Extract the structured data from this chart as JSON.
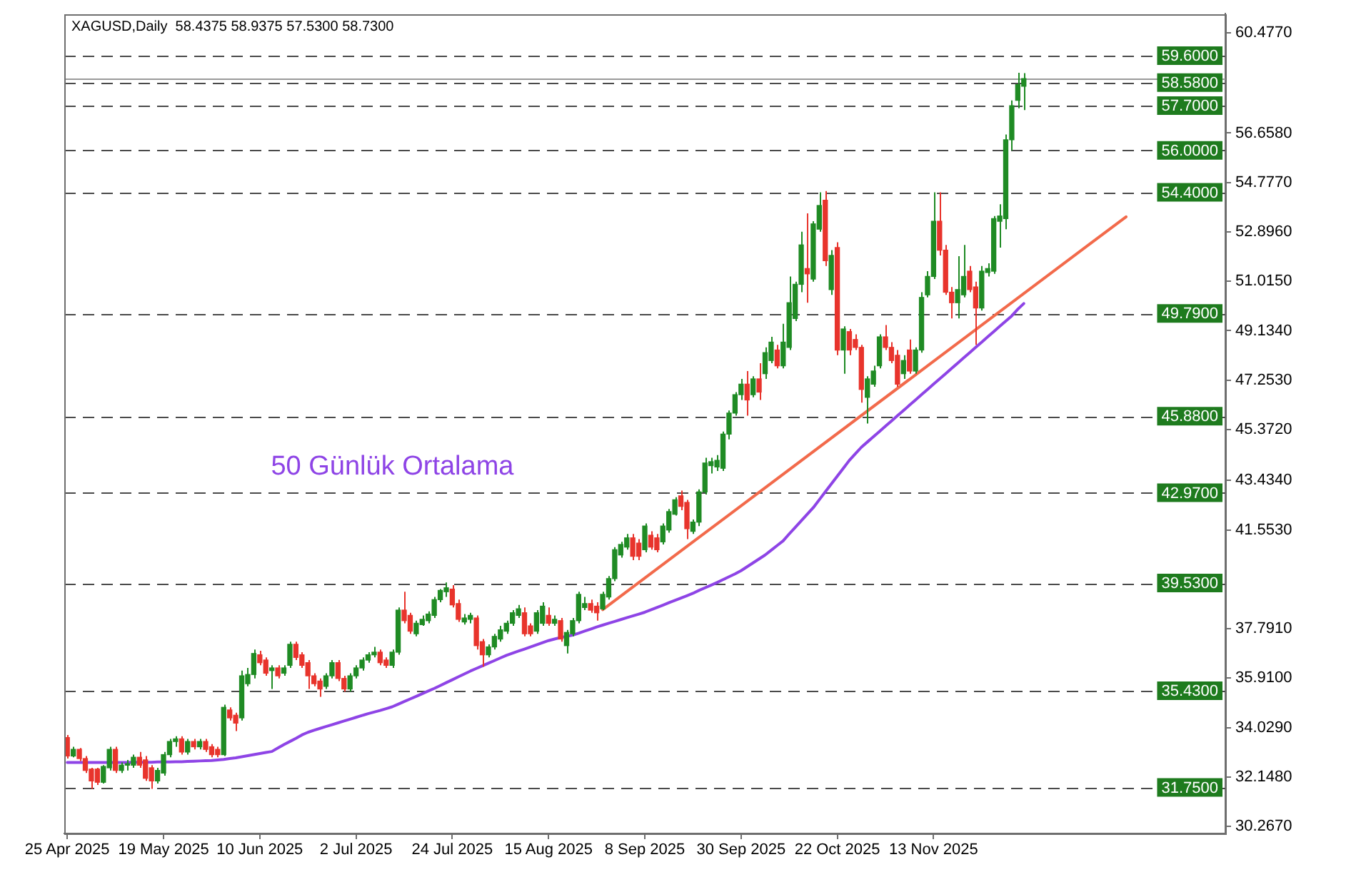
{
  "chart_data": {
    "type": "candlestick",
    "title": "XAGUSD,Daily  58.4375 58.9375 57.5300 58.7300",
    "categories": [
      "25 Apr 2025",
      null,
      null,
      null,
      null,
      null,
      null,
      null,
      null,
      null,
      null,
      null,
      null,
      null,
      null,
      null,
      "19 May 2025",
      null,
      null,
      null,
      null,
      null,
      null,
      null,
      null,
      null,
      null,
      null,
      null,
      null,
      null,
      null,
      "10 Jun 2025",
      null,
      null,
      null,
      null,
      null,
      null,
      null,
      null,
      null,
      null,
      null,
      null,
      null,
      null,
      null,
      "2 Jul 2025",
      null,
      null,
      null,
      null,
      null,
      null,
      null,
      null,
      null,
      null,
      null,
      null,
      null,
      null,
      null,
      "24 Jul 2025",
      null,
      null,
      null,
      null,
      null,
      null,
      null,
      null,
      null,
      null,
      null,
      null,
      null,
      null,
      null,
      "15 Aug 2025",
      null,
      null,
      null,
      null,
      null,
      null,
      null,
      null,
      null,
      null,
      null,
      null,
      null,
      null,
      null,
      "8 Sep 2025",
      null,
      null,
      null,
      null,
      null,
      null,
      null,
      null,
      null,
      null,
      null,
      null,
      null,
      null,
      null,
      "30 Sep 2025",
      null,
      null,
      null,
      null,
      null,
      null,
      null,
      null,
      null,
      null,
      null,
      null,
      null,
      null,
      null,
      "22 Oct 2025",
      null,
      null,
      null,
      null,
      null,
      null,
      null,
      null,
      null,
      null,
      null,
      null,
      null,
      null,
      null,
      "13 Nov 2025",
      null,
      null,
      null,
      null,
      null,
      null,
      null,
      null,
      null,
      null,
      null,
      null,
      null,
      null,
      null,
      null,
      null,
      null,
      null,
      null,
      null,
      null,
      null,
      null,
      null,
      null,
      null,
      null,
      null,
      null,
      null,
      null,
      null,
      null,
      null,
      null,
      null,
      null,
      null,
      null,
      null,
      null,
      null,
      null,
      null,
      null,
      null,
      null
    ],
    "ohlc": [
      [
        33.65,
        33.75,
        32.85,
        32.95
      ],
      [
        32.95,
        33.3,
        32.9,
        33.2
      ],
      [
        33.2,
        33.25,
        32.75,
        32.85
      ],
      [
        32.85,
        32.95,
        32.3,
        32.4
      ],
      [
        32.45,
        32.5,
        31.7,
        32.0
      ],
      [
        32.45,
        32.5,
        31.85,
        31.95
      ],
      [
        31.95,
        32.6,
        31.9,
        32.55
      ],
      [
        32.5,
        33.3,
        32.4,
        33.2
      ],
      [
        33.2,
        33.3,
        32.3,
        32.4
      ],
      [
        32.4,
        32.7,
        32.3,
        32.6
      ],
      [
        32.6,
        32.8,
        32.4,
        32.65
      ],
      [
        32.6,
        33.0,
        32.5,
        32.9
      ],
      [
        32.9,
        33.1,
        32.5,
        32.6
      ],
      [
        32.8,
        32.95,
        32.0,
        32.1
      ],
      [
        32.5,
        32.6,
        31.7,
        32.0
      ],
      [
        32.0,
        32.5,
        31.9,
        32.4
      ],
      [
        32.3,
        33.1,
        32.2,
        33.0
      ],
      [
        33.0,
        33.6,
        32.9,
        33.5
      ],
      [
        33.5,
        33.7,
        33.3,
        33.6
      ],
      [
        33.6,
        33.7,
        33.0,
        33.1
      ],
      [
        33.1,
        33.6,
        33.0,
        33.5
      ],
      [
        33.5,
        33.6,
        33.2,
        33.3
      ],
      [
        33.3,
        33.6,
        33.2,
        33.5
      ],
      [
        33.5,
        33.6,
        33.1,
        33.2
      ],
      [
        33.3,
        33.4,
        32.9,
        33.0
      ],
      [
        33.2,
        33.3,
        32.9,
        33.0
      ],
      [
        33.0,
        34.9,
        32.95,
        34.8
      ],
      [
        34.7,
        34.8,
        34.3,
        34.4
      ],
      [
        34.5,
        34.6,
        33.9,
        34.2
      ],
      [
        34.4,
        36.2,
        34.3,
        36.0
      ],
      [
        35.7,
        36.3,
        35.6,
        36.05
      ],
      [
        36.05,
        37.0,
        35.9,
        36.85
      ],
      [
        36.8,
        36.95,
        36.4,
        36.5
      ],
      [
        36.6,
        36.7,
        36.0,
        36.1
      ],
      [
        36.2,
        36.4,
        35.5,
        36.3
      ],
      [
        36.3,
        36.4,
        35.9,
        36.0
      ],
      [
        36.1,
        36.4,
        36.0,
        36.3
      ],
      [
        36.4,
        37.3,
        36.3,
        37.2
      ],
      [
        37.2,
        37.3,
        36.6,
        36.7
      ],
      [
        36.8,
        36.9,
        36.3,
        36.4
      ],
      [
        36.5,
        36.6,
        35.5,
        36.0
      ],
      [
        36.0,
        36.1,
        35.6,
        35.7
      ],
      [
        35.8,
        35.9,
        35.2,
        35.5
      ],
      [
        35.6,
        36.1,
        35.5,
        36.0
      ],
      [
        36.0,
        36.6,
        35.9,
        36.5
      ],
      [
        36.5,
        36.6,
        35.8,
        35.9
      ],
      [
        35.9,
        36.0,
        35.4,
        35.5
      ],
      [
        35.5,
        36.1,
        35.4,
        36.0
      ],
      [
        36.0,
        36.4,
        35.9,
        36.3
      ],
      [
        36.3,
        36.7,
        36.2,
        36.6
      ],
      [
        36.6,
        36.9,
        36.5,
        36.8
      ],
      [
        36.8,
        37.1,
        36.7,
        36.9
      ],
      [
        36.9,
        37.0,
        36.4,
        36.5
      ],
      [
        36.6,
        36.7,
        36.3,
        36.4
      ],
      [
        36.4,
        37.0,
        36.3,
        36.9
      ],
      [
        36.9,
        38.6,
        36.8,
        38.5
      ],
      [
        38.5,
        39.2,
        38.0,
        38.1
      ],
      [
        38.3,
        38.4,
        37.6,
        37.7
      ],
      [
        37.6,
        38.1,
        37.5,
        38.0
      ],
      [
        37.95,
        38.3,
        37.9,
        38.15
      ],
      [
        38.1,
        38.45,
        38.0,
        38.35
      ],
      [
        38.3,
        39.0,
        38.2,
        38.9
      ],
      [
        38.9,
        39.3,
        38.8,
        39.25
      ],
      [
        39.2,
        39.55,
        39.0,
        39.35
      ],
      [
        39.3,
        39.45,
        38.6,
        38.7
      ],
      [
        38.75,
        38.9,
        38.05,
        38.15
      ],
      [
        38.05,
        38.35,
        37.95,
        38.2
      ],
      [
        38.15,
        38.4,
        38.0,
        38.3
      ],
      [
        38.2,
        38.3,
        37.0,
        37.15
      ],
      [
        37.3,
        37.4,
        36.35,
        36.8
      ],
      [
        36.8,
        37.2,
        36.7,
        37.1
      ],
      [
        37.1,
        37.6,
        37.0,
        37.5
      ],
      [
        37.4,
        37.9,
        37.3,
        37.75
      ],
      [
        37.7,
        38.1,
        37.6,
        38.0
      ],
      [
        38.0,
        38.5,
        37.9,
        38.4
      ],
      [
        38.3,
        38.7,
        38.2,
        38.55
      ],
      [
        38.4,
        38.6,
        37.5,
        37.6
      ],
      [
        37.9,
        38.0,
        37.5,
        37.6
      ],
      [
        37.7,
        38.5,
        37.6,
        38.4
      ],
      [
        38.0,
        38.8,
        37.9,
        38.65
      ],
      [
        38.3,
        38.6,
        37.9,
        38.0
      ],
      [
        38.0,
        38.3,
        37.9,
        38.15
      ],
      [
        38.1,
        38.2,
        37.3,
        37.4
      ],
      [
        37.15,
        37.75,
        36.85,
        37.65
      ],
      [
        37.6,
        38.2,
        37.5,
        38.1
      ],
      [
        38.1,
        39.2,
        38.0,
        39.1
      ],
      [
        38.6,
        39.0,
        38.5,
        38.75
      ],
      [
        38.75,
        38.9,
        38.4,
        38.5
      ],
      [
        38.65,
        38.8,
        38.1,
        38.4
      ],
      [
        38.55,
        39.2,
        38.5,
        39.1
      ],
      [
        39.0,
        39.8,
        38.9,
        39.7
      ],
      [
        39.7,
        40.9,
        39.6,
        40.8
      ],
      [
        40.6,
        41.1,
        40.5,
        41.0
      ],
      [
        40.9,
        41.4,
        40.8,
        41.25
      ],
      [
        41.25,
        41.4,
        40.4,
        40.55
      ],
      [
        41.05,
        41.2,
        40.4,
        40.55
      ],
      [
        40.8,
        41.8,
        40.7,
        41.7
      ],
      [
        41.35,
        41.5,
        40.8,
        40.9
      ],
      [
        41.25,
        41.4,
        40.7,
        40.8
      ],
      [
        41.1,
        41.8,
        41.0,
        41.7
      ],
      [
        41.55,
        42.35,
        41.45,
        42.25
      ],
      [
        42.15,
        42.8,
        42.1,
        42.7
      ],
      [
        42.85,
        43.05,
        42.3,
        42.45
      ],
      [
        42.6,
        42.7,
        41.2,
        41.6
      ],
      [
        41.5,
        41.95,
        41.4,
        41.85
      ],
      [
        41.85,
        43.1,
        41.7,
        43.0
      ],
      [
        43.0,
        44.3,
        42.9,
        44.1
      ],
      [
        44.0,
        44.3,
        43.7,
        44.15
      ],
      [
        43.95,
        44.4,
        43.8,
        44.2
      ],
      [
        43.9,
        45.3,
        43.8,
        45.2
      ],
      [
        45.2,
        46.1,
        45.0,
        46.0
      ],
      [
        46.0,
        46.8,
        45.9,
        46.7
      ],
      [
        46.7,
        47.3,
        46.5,
        47.1
      ],
      [
        47.1,
        47.6,
        45.9,
        46.5
      ],
      [
        46.7,
        47.4,
        46.6,
        47.3
      ],
      [
        47.3,
        47.9,
        46.5,
        46.8
      ],
      [
        47.5,
        48.5,
        47.3,
        48.3
      ],
      [
        48.0,
        48.9,
        47.9,
        48.7
      ],
      [
        48.4,
        48.6,
        47.7,
        47.8
      ],
      [
        47.8,
        49.4,
        47.7,
        48.7
      ],
      [
        48.5,
        51.2,
        48.4,
        50.2
      ],
      [
        49.6,
        51.0,
        49.5,
        50.9
      ],
      [
        50.9,
        52.9,
        50.6,
        52.4
      ],
      [
        51.5,
        53.6,
        50.2,
        51.3
      ],
      [
        51.1,
        53.3,
        51.0,
        53.2
      ],
      [
        53.0,
        54.4,
        52.9,
        53.9
      ],
      [
        54.1,
        54.45,
        51.6,
        51.8
      ],
      [
        50.7,
        52.2,
        50.5,
        52.0
      ],
      [
        52.3,
        52.5,
        48.2,
        48.4
      ],
      [
        48.4,
        49.3,
        47.5,
        49.2
      ],
      [
        49.1,
        49.2,
        48.2,
        48.4
      ],
      [
        48.8,
        49.0,
        48.4,
        48.5
      ],
      [
        48.5,
        48.6,
        46.4,
        46.9
      ],
      [
        46.6,
        47.4,
        45.6,
        47.3
      ],
      [
        47.1,
        47.8,
        47.0,
        47.6
      ],
      [
        47.8,
        49.0,
        47.7,
        48.9
      ],
      [
        48.9,
        49.35,
        48.4,
        48.5
      ],
      [
        48.5,
        48.7,
        47.9,
        48.0
      ],
      [
        48.2,
        48.4,
        47.0,
        47.1
      ],
      [
        47.5,
        48.2,
        47.3,
        48.0
      ],
      [
        48.4,
        48.8,
        47.5,
        47.6
      ],
      [
        47.6,
        48.5,
        47.5,
        48.4
      ],
      [
        48.4,
        50.6,
        48.3,
        50.4
      ],
      [
        50.5,
        51.4,
        50.4,
        51.2
      ],
      [
        51.2,
        54.4,
        51.1,
        53.3
      ],
      [
        53.3,
        54.4,
        52.0,
        52.2
      ],
      [
        52.2,
        52.4,
        50.5,
        50.6
      ],
      [
        50.6,
        50.8,
        49.6,
        50.2
      ],
      [
        50.2,
        51.97,
        49.6,
        50.7
      ],
      [
        50.5,
        52.4,
        50.4,
        51.2
      ],
      [
        51.4,
        51.6,
        50.6,
        50.7
      ],
      [
        50.8,
        51.0,
        48.6,
        50.0
      ],
      [
        50.0,
        51.6,
        49.9,
        51.4
      ],
      [
        51.35,
        51.7,
        51.2,
        51.5
      ],
      [
        51.4,
        53.5,
        51.3,
        53.4
      ],
      [
        53.3,
        53.95,
        52.3,
        53.5
      ],
      [
        53.4,
        56.6,
        53.0,
        56.4
      ],
      [
        56.4,
        57.9,
        56.0,
        57.7
      ],
      [
        57.9,
        58.95,
        57.6,
        58.5
      ],
      [
        58.4375,
        58.9375,
        57.53,
        58.73
      ],
      null,
      null,
      null,
      null,
      null,
      null,
      null,
      null,
      null,
      null,
      null,
      null,
      null,
      null,
      null,
      null,
      null,
      null,
      null,
      null,
      null,
      null,
      null,
      null,
      null,
      null,
      null,
      null,
      null,
      null,
      null,
      null,
      null
    ],
    "colors": [
      "#e8342c",
      "#1f8b24",
      "#e8342c",
      "#e8342c",
      "#e8342c",
      "#e8342c",
      "#1f8b24",
      "#1f8b24",
      "#e8342c",
      "#1f8b24",
      "#1f8b24",
      "#1f8b24",
      "#e8342c",
      "#e8342c",
      "#e8342c",
      "#1f8b24",
      "#1f8b24",
      "#1f8b24",
      "#1f8b24",
      "#e8342c",
      "#1f8b24",
      "#e8342c",
      "#1f8b24",
      "#e8342c",
      "#e8342c",
      "#e8342c",
      "#1f8b24",
      "#e8342c",
      "#e8342c",
      "#1f8b24",
      "#1f8b24",
      "#1f8b24",
      "#e8342c",
      "#e8342c",
      "#1f8b24",
      "#e8342c",
      "#1f8b24",
      "#1f8b24",
      "#e8342c",
      "#e8342c",
      "#e8342c",
      "#e8342c",
      "#e8342c",
      "#1f8b24",
      "#1f8b24",
      "#e8342c",
      "#e8342c",
      "#1f8b24",
      "#1f8b24",
      "#1f8b24",
      "#1f8b24",
      "#1f8b24",
      "#e8342c",
      "#e8342c",
      "#1f8b24",
      "#1f8b24",
      "#e8342c",
      "#e8342c",
      "#1f8b24",
      "#1f8b24",
      "#1f8b24",
      "#1f8b24",
      "#1f8b24",
      "#1f8b24",
      "#e8342c",
      "#e8342c",
      "#1f8b24",
      "#1f8b24",
      "#e8342c",
      "#e8342c",
      "#1f8b24",
      "#1f8b24",
      "#1f8b24",
      "#1f8b24",
      "#1f8b24",
      "#1f8b24",
      "#e8342c",
      "#e8342c",
      "#1f8b24",
      "#1f8b24",
      "#e8342c",
      "#1f8b24",
      "#e8342c",
      "#1f8b24",
      "#1f8b24",
      "#1f8b24",
      "#1f8b24",
      "#e8342c",
      "#e8342c",
      "#1f8b24",
      "#1f8b24",
      "#1f8b24",
      "#1f8b24",
      "#1f8b24",
      "#e8342c",
      "#e8342c",
      "#1f8b24",
      "#e8342c",
      "#e8342c",
      "#1f8b24",
      "#1f8b24",
      "#1f8b24",
      "#e8342c",
      "#e8342c",
      "#1f8b24",
      "#1f8b24",
      "#1f8b24",
      "#1f8b24",
      "#1f8b24",
      "#1f8b24",
      "#1f8b24",
      "#1f8b24",
      "#1f8b24",
      "#e8342c",
      "#1f8b24",
      "#e8342c",
      "#1f8b24",
      "#1f8b24",
      "#e8342c",
      "#1f8b24",
      "#1f8b24",
      "#1f8b24",
      "#1f8b24",
      "#e8342c",
      "#1f8b24",
      "#1f8b24",
      "#e8342c",
      "#1f8b24",
      "#e8342c",
      "#1f8b24",
      "#e8342c",
      "#e8342c",
      "#e8342c",
      "#1f8b24",
      "#1f8b24",
      "#1f8b24",
      "#e8342c",
      "#e8342c",
      "#e8342c",
      "#1f8b24",
      "#e8342c",
      "#1f8b24",
      "#1f8b24",
      "#1f8b24",
      "#1f8b24",
      "#e8342c",
      "#e8342c",
      "#e8342c",
      "#1f8b24",
      "#1f8b24",
      "#e8342c",
      "#e8342c",
      "#1f8b24",
      "#1f8b24",
      "#1f8b24",
      "#1f8b24",
      "#1f8b24",
      "#1f8b24",
      "#1f8b24",
      "#1f8b24",
      null,
      null,
      null,
      null,
      null,
      null,
      null,
      null,
      null,
      null,
      null,
      null,
      null,
      null,
      null,
      null,
      null,
      null,
      null,
      null,
      null,
      null,
      null,
      null,
      null,
      null,
      null,
      null,
      null,
      null,
      null,
      null,
      null
    ],
    "series": [
      {
        "type": "line",
        "name": "50 Günlük Ortalama",
        "color": "#8e44e6",
        "values": [
          32.7,
          32.7,
          32.7,
          32.7,
          32.7,
          32.7,
          32.7,
          32.7,
          32.7,
          32.7,
          32.7,
          32.71,
          32.71,
          32.71,
          32.71,
          32.72,
          32.72,
          32.72,
          32.73,
          32.73,
          32.74,
          32.75,
          32.76,
          32.77,
          32.78,
          32.8,
          32.82,
          32.85,
          32.88,
          32.92,
          32.96,
          33.0,
          33.04,
          33.08,
          33.12,
          33.25,
          33.38,
          33.5,
          33.62,
          33.75,
          33.85,
          33.93,
          34.0,
          34.07,
          34.14,
          34.21,
          34.28,
          34.35,
          34.42,
          34.49,
          34.56,
          34.62,
          34.68,
          34.75,
          34.82,
          34.92,
          35.02,
          35.12,
          35.22,
          35.32,
          35.42,
          35.52,
          35.63,
          35.74,
          35.85,
          35.96,
          36.07,
          36.18,
          36.28,
          36.38,
          36.48,
          36.58,
          36.68,
          36.78,
          36.86,
          36.94,
          37.02,
          37.1,
          37.18,
          37.26,
          37.34,
          37.4,
          37.46,
          37.5,
          37.55,
          37.62,
          37.7,
          37.78,
          37.86,
          37.93,
          38.0,
          38.07,
          38.14,
          38.21,
          38.28,
          38.35,
          38.42,
          38.51,
          38.6,
          38.69,
          38.78,
          38.87,
          38.96,
          39.05,
          39.14,
          39.25,
          39.35,
          39.45,
          39.55,
          39.66,
          39.77,
          39.88,
          40.0,
          40.15,
          40.3,
          40.45,
          40.6,
          40.78,
          40.96,
          41.14,
          41.4,
          41.65,
          41.9,
          42.15,
          42.4,
          42.7,
          43.0,
          43.3,
          43.6,
          43.9,
          44.2,
          44.45,
          44.7,
          44.9,
          45.1,
          45.3,
          45.5,
          45.7,
          45.9,
          46.1,
          46.3,
          46.5,
          46.7,
          46.9,
          47.1,
          47.3,
          47.5,
          47.7,
          47.9,
          48.1,
          48.3,
          48.5,
          48.7,
          48.9,
          49.1,
          49.3,
          49.5,
          49.7,
          49.95,
          50.17,
          null,
          null,
          null,
          null,
          null,
          null,
          null,
          null,
          null,
          null,
          null,
          null,
          null,
          null,
          null,
          null,
          null,
          null,
          null,
          null,
          null,
          null,
          null,
          null,
          null,
          null,
          null,
          null,
          null,
          null,
          null,
          null,
          null
        ]
      },
      {
        "type": "line",
        "color": "#f26a4b",
        "values": [
          null,
          null,
          null,
          null,
          null,
          null,
          null,
          null,
          null,
          null,
          null,
          null,
          null,
          null,
          null,
          null,
          null,
          null,
          null,
          null,
          null,
          null,
          null,
          null,
          null,
          null,
          null,
          null,
          null,
          null,
          null,
          null,
          null,
          null,
          null,
          null,
          null,
          null,
          null,
          null,
          null,
          null,
          null,
          null,
          null,
          null,
          null,
          null,
          null,
          null,
          null,
          null,
          null,
          null,
          null,
          null,
          null,
          null,
          null,
          null,
          null,
          null,
          null,
          null,
          null,
          null,
          null,
          null,
          null,
          null,
          null,
          null,
          null,
          null,
          null,
          null,
          null,
          null,
          null,
          null,
          null,
          null,
          null,
          null,
          null,
          null,
          null,
          null,
          null,
          38.52,
          null,
          null,
          null,
          null,
          null,
          null,
          null,
          null,
          null,
          null,
          null,
          null,
          null,
          null,
          null,
          null,
          null,
          null,
          null,
          null,
          null,
          null,
          null,
          null,
          null,
          null,
          null,
          null,
          null,
          null,
          null,
          null,
          null,
          null,
          null,
          null,
          null,
          null,
          null,
          null,
          null,
          null,
          null,
          null,
          null,
          null,
          null,
          null,
          null,
          null,
          null,
          null,
          null,
          null,
          null,
          null,
          null,
          null,
          null,
          null,
          null,
          null,
          null,
          null,
          null,
          null,
          null,
          null,
          null,
          null,
          null,
          null,
          null,
          null,
          null,
          null,
          null,
          null,
          null,
          null,
          null,
          null,
          null,
          null,
          null,
          null,
          53.47,
          null,
          null,
          null,
          null,
          null,
          null,
          null,
          null,
          null,
          null,
          null,
          null,
          null,
          null,
          null,
          null
        ]
      }
    ],
    "ylim": [
      30.0,
      61.2
    ],
    "yticks": [
      {
        "value": 60.477,
        "label": "60.4770"
      },
      {
        "value": 56.658,
        "label": "56.6580"
      },
      {
        "value": 54.777,
        "label": "54.7770"
      },
      {
        "value": 52.896,
        "label": "52.8960"
      },
      {
        "value": 51.015,
        "label": "51.0150"
      },
      {
        "value": 49.134,
        "label": "49.1340"
      },
      {
        "value": 47.253,
        "label": "47.2530"
      },
      {
        "value": 45.372,
        "label": "45.3720"
      },
      {
        "value": 43.434,
        "label": "43.4340"
      },
      {
        "value": 41.553,
        "label": "41.5530"
      },
      {
        "value": 37.791,
        "label": "37.7910"
      },
      {
        "value": 35.91,
        "label": "35.9100"
      },
      {
        "value": 34.029,
        "label": "34.0290"
      },
      {
        "value": 32.148,
        "label": "32.1480"
      },
      {
        "value": 30.267,
        "label": "30.2670"
      }
    ],
    "ref_lines": [
      {
        "axis": "y",
        "value": 59.6,
        "label": "59.6000",
        "color": "#4a4a4a",
        "line_style": "dashed"
      },
      {
        "axis": "y",
        "value": 58.73,
        "color": "#9a9a9a",
        "line_style": "solid"
      },
      {
        "axis": "y",
        "value": 58.58,
        "label": "58.5800",
        "color": "#4a4a4a",
        "line_style": "dashed"
      },
      {
        "axis": "y",
        "value": 57.7,
        "label": "57.7000",
        "color": "#4a4a4a",
        "line_style": "dashed"
      },
      {
        "axis": "y",
        "value": 56.0,
        "label": "56.0000",
        "color": "#4a4a4a",
        "line_style": "dashed"
      },
      {
        "axis": "y",
        "value": 54.4,
        "label": "54.4000",
        "color": "#4a4a4a",
        "line_style": "dashed"
      },
      {
        "axis": "y",
        "value": 49.79,
        "label": "49.7900",
        "color": "#4a4a4a",
        "line_style": "dashed"
      },
      {
        "axis": "y",
        "value": 45.88,
        "label": "45.8800",
        "color": "#4a4a4a",
        "line_style": "dashed"
      },
      {
        "axis": "y",
        "value": 42.97,
        "label": "42.9700",
        "color": "#4a4a4a",
        "line_style": "dashed"
      },
      {
        "axis": "y",
        "value": 39.53,
        "label": "39.5300",
        "color": "#4a4a4a",
        "line_style": "dashed"
      },
      {
        "axis": "y",
        "value": 35.43,
        "label": "35.4300",
        "color": "#4a4a4a",
        "line_style": "dashed"
      },
      {
        "axis": "y",
        "value": 31.75,
        "label": "31.7500",
        "color": "#4a4a4a",
        "line_style": "dashed"
      }
    ]
  }
}
